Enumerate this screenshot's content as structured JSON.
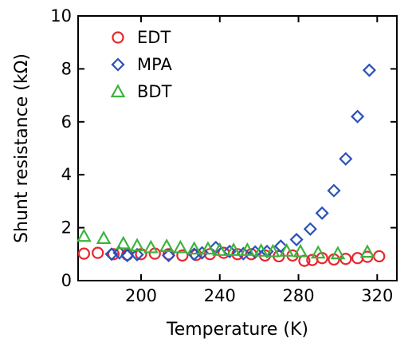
{
  "chart_data": {
    "type": "scatter",
    "xlabel": "Temperature (K)",
    "ylabel": "Shunt resistance (kΩ)",
    "xlim": [
      168,
      330
    ],
    "ylim": [
      0,
      10
    ],
    "xticks": [
      200,
      240,
      280,
      320
    ],
    "yticks": [
      0,
      2,
      4,
      6,
      8,
      10
    ],
    "legend_position": "top-left",
    "series": [
      {
        "name": "EDT",
        "marker": "circle",
        "color": "#e8262b",
        "points": [
          [
            171,
            1.02
          ],
          [
            178,
            1.05
          ],
          [
            186,
            1.0
          ],
          [
            193,
            0.98
          ],
          [
            200,
            1.0
          ],
          [
            207,
            1.02
          ],
          [
            214,
            1.0
          ],
          [
            221,
            0.95
          ],
          [
            228,
            0.97
          ],
          [
            235,
            1.0
          ],
          [
            242,
            1.05
          ],
          [
            249,
            1.0
          ],
          [
            256,
            1.0
          ],
          [
            263,
            0.95
          ],
          [
            270,
            0.92
          ],
          [
            277,
            0.95
          ],
          [
            283,
            0.75
          ],
          [
            287,
            0.78
          ],
          [
            292,
            0.85
          ],
          [
            298,
            0.8
          ],
          [
            304,
            0.82
          ],
          [
            310,
            0.85
          ],
          [
            315,
            0.9
          ],
          [
            321,
            0.92
          ]
        ]
      },
      {
        "name": "MPA",
        "marker": "diamond",
        "color": "#2a52b8",
        "points": [
          [
            185,
            1.0
          ],
          [
            189,
            1.05
          ],
          [
            193,
            0.95
          ],
          [
            198,
            0.98
          ],
          [
            214,
            0.95
          ],
          [
            227,
            1.0
          ],
          [
            231,
            1.05
          ],
          [
            238,
            1.25
          ],
          [
            245,
            1.1
          ],
          [
            252,
            1.02
          ],
          [
            258,
            1.08
          ],
          [
            264,
            1.1
          ],
          [
            271,
            1.3
          ],
          [
            279,
            1.55
          ],
          [
            286,
            1.95
          ],
          [
            292,
            2.55
          ],
          [
            298,
            3.4
          ],
          [
            304,
            4.6
          ],
          [
            310,
            6.2
          ],
          [
            316,
            7.95
          ]
        ]
      },
      {
        "name": "BDT",
        "marker": "triangle",
        "color": "#3db33d",
        "points": [
          [
            171,
            1.68
          ],
          [
            181,
            1.6
          ],
          [
            191,
            1.4
          ],
          [
            198,
            1.32
          ],
          [
            205,
            1.25
          ],
          [
            213,
            1.3
          ],
          [
            220,
            1.25
          ],
          [
            227,
            1.2
          ],
          [
            234,
            1.2
          ],
          [
            240,
            1.15
          ],
          [
            247,
            1.15
          ],
          [
            254,
            1.15
          ],
          [
            261,
            1.12
          ],
          [
            267,
            1.1
          ],
          [
            274,
            1.12
          ],
          [
            281,
            1.1
          ],
          [
            290,
            1.05
          ],
          [
            300,
            1.02
          ],
          [
            315,
            1.08
          ]
        ]
      }
    ]
  }
}
